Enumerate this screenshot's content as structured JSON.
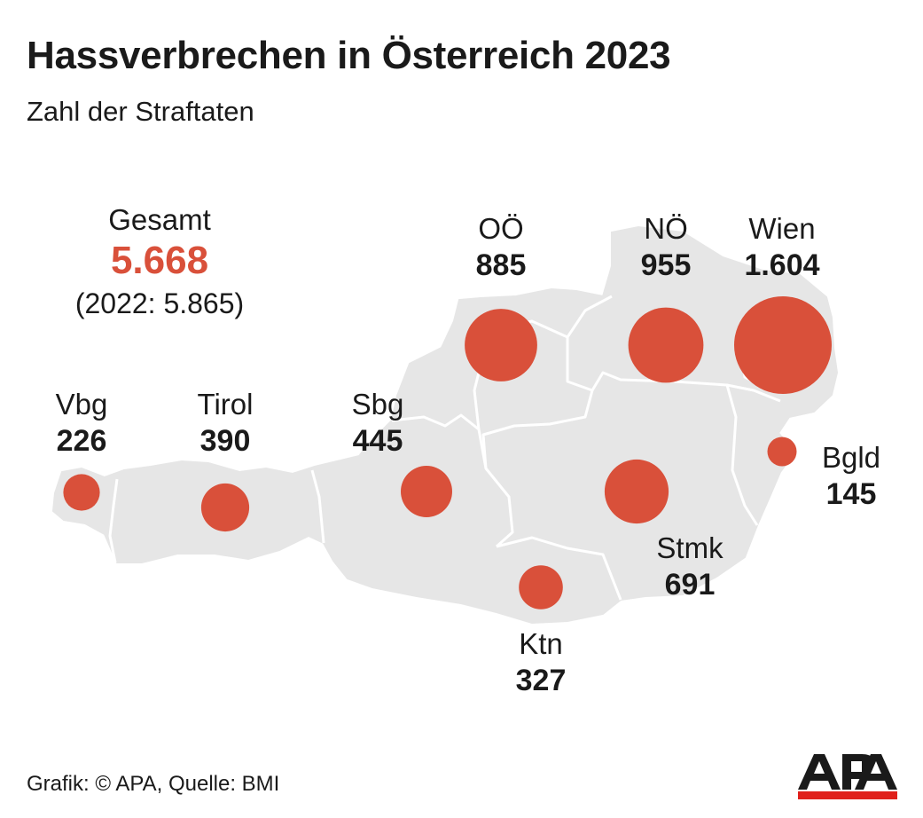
{
  "title": "Hassverbrechen in Österreich 2023",
  "subtitle": "Zahl der Straftaten",
  "total": {
    "label": "Gesamt",
    "value": "5.668",
    "previous": "(2022: 5.865)"
  },
  "colors": {
    "bubble": "#d9503a",
    "land": "#e6e6e6",
    "border": "#ffffff",
    "logo_red": "#e0201b",
    "logo_black": "#1a1a1a"
  },
  "regions": [
    {
      "key": "vbg",
      "name": "Vbg",
      "value": 226,
      "display": "226"
    },
    {
      "key": "tirol",
      "name": "Tirol",
      "value": 390,
      "display": "390"
    },
    {
      "key": "sbg",
      "name": "Sbg",
      "value": 445,
      "display": "445"
    },
    {
      "key": "ooe",
      "name": "OÖ",
      "value": 885,
      "display": "885"
    },
    {
      "key": "noe",
      "name": "NÖ",
      "value": 955,
      "display": "955"
    },
    {
      "key": "wien",
      "name": "Wien",
      "value": 1604,
      "display": "1.604"
    },
    {
      "key": "bgld",
      "name": "Bgld",
      "value": 145,
      "display": "145"
    },
    {
      "key": "stmk",
      "name": "Stmk",
      "value": 691,
      "display": "691"
    },
    {
      "key": "ktn",
      "name": "Ktn",
      "value": 327,
      "display": "327"
    }
  ],
  "footer": "Grafik: © APA, Quelle: BMI",
  "logo_text": "APA"
}
